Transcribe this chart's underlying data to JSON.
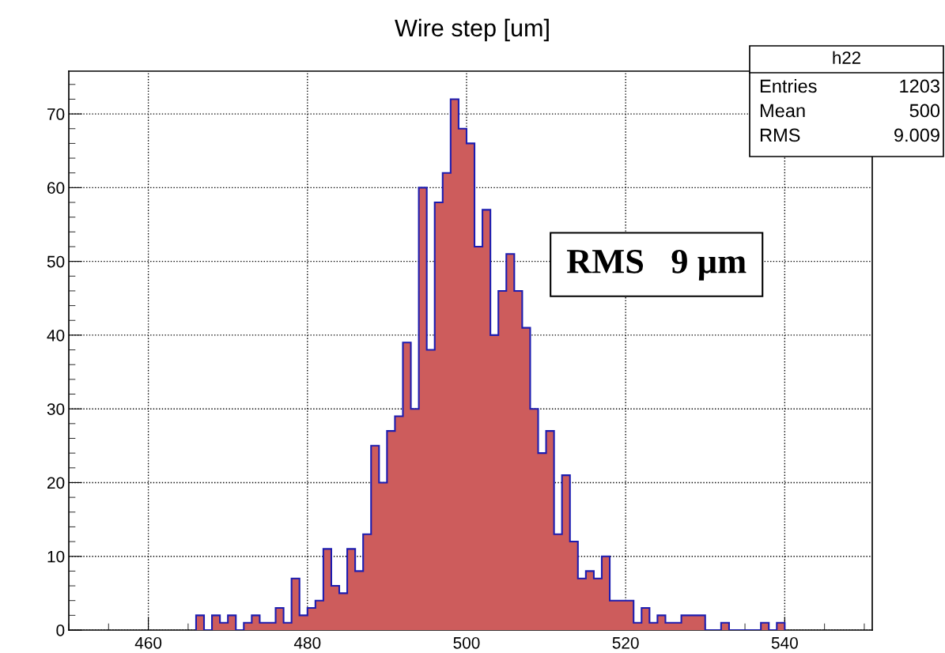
{
  "chart_data": {
    "type": "histogram",
    "title": "Wire step [um]",
    "bins": [
      466,
      467,
      468,
      469,
      470,
      471,
      472,
      473,
      474,
      475,
      476,
      477,
      478,
      479,
      480,
      481,
      482,
      483,
      484,
      485,
      486,
      487,
      488,
      489,
      490,
      491,
      492,
      493,
      494,
      495,
      496,
      497,
      498,
      499,
      500,
      501,
      502,
      503,
      504,
      505,
      506,
      507,
      508,
      509,
      510,
      511,
      512,
      513,
      514,
      515,
      516,
      517,
      518,
      519,
      520,
      521,
      522,
      523,
      524,
      525,
      526,
      527,
      528,
      529,
      530,
      531,
      532,
      533,
      534,
      535,
      536,
      537,
      538,
      539,
      540
    ],
    "values": [
      2,
      0,
      2,
      1,
      2,
      0,
      1,
      2,
      1,
      1,
      3,
      1,
      7,
      2,
      3,
      4,
      11,
      6,
      5,
      11,
      8,
      13,
      25,
      20,
      27,
      29,
      39,
      30,
      60,
      38,
      58,
      62,
      72,
      68,
      66,
      52,
      57,
      40,
      46,
      51,
      46,
      41,
      30,
      24,
      27,
      13,
      21,
      12,
      7,
      8,
      7,
      10,
      4,
      4,
      4,
      1,
      3,
      1,
      2,
      1,
      1,
      2,
      2,
      2,
      0,
      0,
      1,
      0,
      0,
      0,
      0,
      1,
      0,
      1
    ],
    "color": "#cd5c5c",
    "xlim": [
      450,
      551
    ],
    "xticks": [
      460,
      480,
      500,
      520,
      540
    ],
    "ylim": [
      0,
      75.8
    ],
    "yticks": [
      0,
      10,
      20,
      30,
      40,
      50,
      60,
      70
    ],
    "grid": true,
    "annotations": [
      "h22",
      "Entries",
      "1203",
      "Mean",
      "500",
      "RMS",
      "9.009",
      "RMS   9 µm"
    ]
  }
}
